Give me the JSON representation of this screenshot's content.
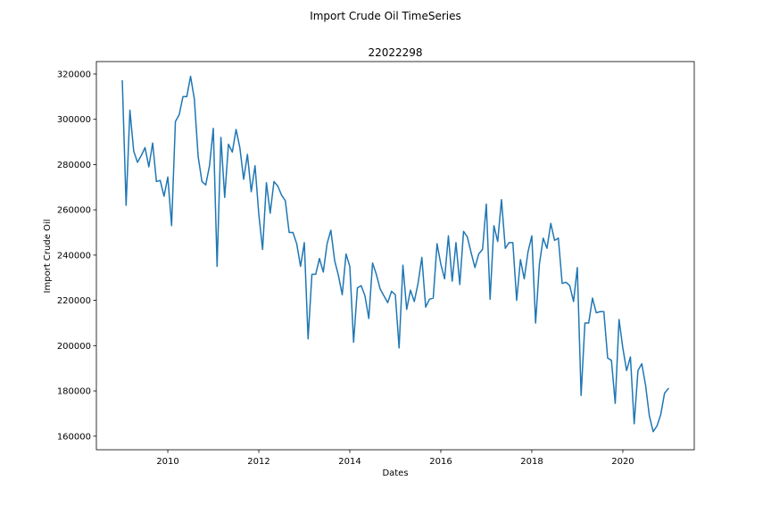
{
  "chart_data": {
    "type": "line",
    "suptitle": "Import Crude Oil TimeSeries",
    "title": "22022298",
    "xlabel": "Dates",
    "ylabel": "Import Crude Oil",
    "xlim": [
      2008.43,
      2021.57
    ],
    "ylim": [
      154000,
      325500
    ],
    "xticks": [
      2010,
      2012,
      2014,
      2016,
      2018,
      2020
    ],
    "yticks": [
      160000,
      180000,
      200000,
      220000,
      240000,
      260000,
      280000,
      300000,
      320000
    ],
    "grid": false,
    "line_color": "#1f77b4",
    "series": [
      {
        "x": [
          2009.0,
          2009.083,
          2009.167,
          2009.25,
          2009.333,
          2009.417,
          2009.5,
          2009.583,
          2009.667,
          2009.75,
          2009.833,
          2009.917,
          2010.0,
          2010.083,
          2010.167,
          2010.25,
          2010.333,
          2010.417,
          2010.5,
          2010.583,
          2010.667,
          2010.75,
          2010.833,
          2010.917,
          2011.0,
          2011.083,
          2011.167,
          2011.25,
          2011.333,
          2011.417,
          2011.5,
          2011.583,
          2011.667,
          2011.75,
          2011.833,
          2011.917,
          2012.0,
          2012.083,
          2012.167,
          2012.25,
          2012.333,
          2012.417,
          2012.5,
          2012.583,
          2012.667,
          2012.75,
          2012.833,
          2012.917,
          2013.0,
          2013.083,
          2013.167,
          2013.25,
          2013.333,
          2013.417,
          2013.5,
          2013.583,
          2013.667,
          2013.75,
          2013.833,
          2013.917,
          2014.0,
          2014.083,
          2014.167,
          2014.25,
          2014.333,
          2014.417,
          2014.5,
          2014.583,
          2014.667,
          2014.75,
          2014.833,
          2014.917,
          2015.0,
          2015.083,
          2015.167,
          2015.25,
          2015.333,
          2015.417,
          2015.5,
          2015.583,
          2015.667,
          2015.75,
          2015.833,
          2015.917,
          2016.0,
          2016.083,
          2016.167,
          2016.25,
          2016.333,
          2016.417,
          2016.5,
          2016.583,
          2016.667,
          2016.75,
          2016.833,
          2016.917,
          2017.0,
          2017.083,
          2017.167,
          2017.25,
          2017.333,
          2017.417,
          2017.5,
          2017.583,
          2017.667,
          2017.75,
          2017.833,
          2017.917,
          2018.0,
          2018.083,
          2018.167,
          2018.25,
          2018.333,
          2018.417,
          2018.5,
          2018.583,
          2018.667,
          2018.75,
          2018.833,
          2018.917,
          2019.0,
          2019.083,
          2019.167,
          2019.25,
          2019.333,
          2019.417,
          2019.5,
          2019.583,
          2019.667,
          2019.75,
          2019.833,
          2019.917,
          2020.0,
          2020.083,
          2020.167,
          2020.25,
          2020.333,
          2020.417,
          2020.5,
          2020.583,
          2020.667,
          2020.75,
          2020.833,
          2020.917,
          2021.0
        ],
        "values": [
          317000,
          262000,
          304000,
          286000,
          281000,
          284000,
          287500,
          279000,
          289500,
          272500,
          273000,
          266000,
          274500,
          253000,
          299000,
          302000,
          310000,
          310000,
          319000,
          309000,
          283500,
          272500,
          271000,
          279500,
          296000,
          235000,
          292000,
          265500,
          289000,
          285500,
          295500,
          287500,
          273500,
          284500,
          268000,
          279500,
          258000,
          242500,
          272000,
          258500,
          272500,
          270500,
          266500,
          264000,
          250000,
          250000,
          245000,
          235000,
          245500,
          203000,
          231500,
          231500,
          238500,
          232500,
          245000,
          251000,
          237500,
          231000,
          222500,
          240500,
          235000,
          201500,
          225500,
          226500,
          222000,
          212000,
          236500,
          231500,
          225000,
          222000,
          219000,
          224000,
          222500,
          199000,
          235500,
          216000,
          224500,
          219500,
          227500,
          239000,
          217000,
          220500,
          221000,
          245000,
          236000,
          229500,
          248500,
          228500,
          245500,
          227000,
          250500,
          248000,
          241000,
          234500,
          240500,
          242500,
          262500,
          220500,
          253000,
          246000,
          264500,
          243000,
          245500,
          245500,
          220000,
          238000,
          229500,
          241500,
          248500,
          210000,
          236000,
          247500,
          243000,
          254000,
          246500,
          247500,
          227500,
          228000,
          226500,
          219500,
          234500,
          178000,
          210000,
          210000,
          221000,
          214500,
          215000,
          215000,
          194500,
          193500,
          174500,
          211500,
          199000,
          189000,
          195000,
          165500,
          189000,
          192000,
          182500,
          169000,
          162000,
          164500,
          169500,
          179000,
          181000
        ]
      }
    ]
  }
}
